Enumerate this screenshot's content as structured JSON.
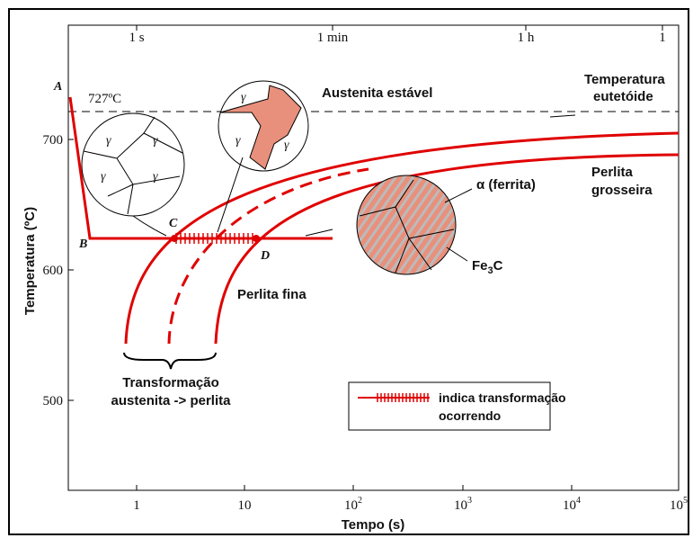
{
  "diagram": {
    "y_axis_label": "Temperatura (ºC)",
    "x_axis_label": "Tempo (s)",
    "y_ticks": [
      "700",
      "600",
      "500"
    ],
    "top_ticks": [
      "1 s",
      "1 min",
      "1 h",
      "1"
    ],
    "bottom_ticks": [
      {
        "base": "1"
      },
      {
        "base": "10"
      },
      {
        "base": "10",
        "exp": "2"
      },
      {
        "base": "10",
        "exp": "3"
      },
      {
        "base": "10",
        "exp": "4"
      },
      {
        "base": "10",
        "exp": "5"
      }
    ],
    "eutectoid_temp": "727ºC",
    "points": [
      "A",
      "B",
      "C",
      "D"
    ],
    "labels": {
      "stable": "Austenita estável",
      "eutectoid": [
        "Temperatura",
        "eutetóide"
      ],
      "coarse": [
        "Perlita",
        "grosseira"
      ],
      "fine": "Perlita fina",
      "ferrite": "α (ferrita)",
      "cementite": {
        "base": "Fe",
        "sub": "3",
        "rest": "C"
      },
      "transformation": [
        "Transformação",
        "austenita -> perlita"
      ],
      "gamma": "γ"
    },
    "legend": [
      "indica transformação",
      "ocorrendo"
    ]
  }
}
